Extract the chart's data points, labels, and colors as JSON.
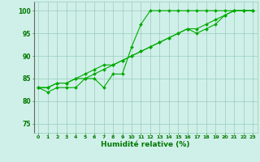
{
  "title": "",
  "xlabel": "Humidité relative (%)",
  "ylabel": "",
  "xlim": [
    -0.5,
    23.5
  ],
  "ylim": [
    73,
    102
  ],
  "yticks": [
    75,
    80,
    85,
    90,
    95,
    100
  ],
  "xticks": [
    0,
    1,
    2,
    3,
    4,
    5,
    6,
    7,
    8,
    9,
    10,
    11,
    12,
    13,
    14,
    15,
    16,
    17,
    18,
    19,
    20,
    21,
    22,
    23
  ],
  "background_color": "#cff0e8",
  "grid_color": "#99ccbb",
  "line_color": "#00aa00",
  "line1": [
    83,
    82,
    83,
    83,
    83,
    85,
    85,
    83,
    86,
    86,
    92,
    97,
    100,
    100,
    100,
    100,
    100,
    100,
    100,
    100,
    100,
    100,
    100,
    100
  ],
  "line2": [
    83,
    83,
    84,
    84,
    85,
    86,
    87,
    88,
    88,
    89,
    90,
    91,
    92,
    93,
    94,
    95,
    96,
    96,
    97,
    98,
    99,
    100,
    100,
    100
  ],
  "line3": [
    83,
    83,
    84,
    84,
    85,
    85,
    86,
    87,
    88,
    89,
    90,
    91,
    92,
    93,
    94,
    95,
    96,
    95,
    96,
    97,
    99,
    100,
    100,
    100
  ]
}
